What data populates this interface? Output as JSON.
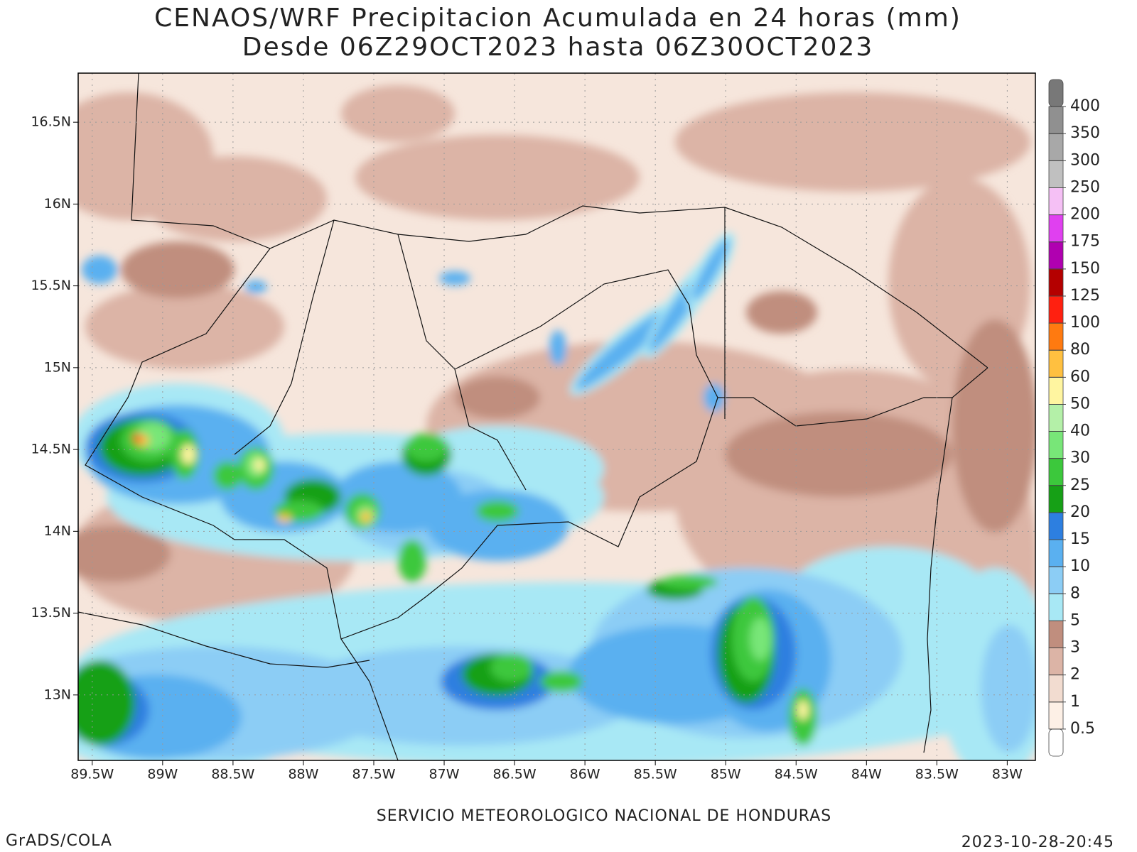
{
  "header": {
    "title": "CENAOS/WRF Precipitacion Acumulada en 24 horas (mm)",
    "subtitle": "Desde 06Z29OCT2023 hasta 06Z30OCT2023"
  },
  "map": {
    "xlim": [
      -89.6,
      -82.8
    ],
    "ylim": [
      12.6,
      16.8
    ],
    "grid": true,
    "xticks": [
      {
        "value": -89.5,
        "label": "89.5W"
      },
      {
        "value": -89,
        "label": "89W"
      },
      {
        "value": -88.5,
        "label": "88.5W"
      },
      {
        "value": -88,
        "label": "88W"
      },
      {
        "value": -87.5,
        "label": "87.5W"
      },
      {
        "value": -87,
        "label": "87W"
      },
      {
        "value": -86.5,
        "label": "86.5W"
      },
      {
        "value": -86,
        "label": "86W"
      },
      {
        "value": -85.5,
        "label": "85.5W"
      },
      {
        "value": -85,
        "label": "85W"
      },
      {
        "value": -84.5,
        "label": "84.5W"
      },
      {
        "value": -84,
        "label": "84W"
      },
      {
        "value": -83.5,
        "label": "83.5W"
      },
      {
        "value": -83,
        "label": "83W"
      }
    ],
    "yticks": [
      {
        "value": 13,
        "label": "13N"
      },
      {
        "value": 13.5,
        "label": "13.5N"
      },
      {
        "value": 14,
        "label": "14N"
      },
      {
        "value": 14.5,
        "label": "14.5N"
      },
      {
        "value": 15,
        "label": "15N"
      },
      {
        "value": 15.5,
        "label": "15.5N"
      },
      {
        "value": 16,
        "label": "16N"
      },
      {
        "value": 16.5,
        "label": "16.5N"
      }
    ]
  },
  "colorbar": {
    "levels": [
      0.5,
      1,
      2,
      3,
      5,
      8,
      10,
      15,
      20,
      25,
      30,
      40,
      50,
      60,
      80,
      100,
      125,
      150,
      175,
      200,
      250,
      300,
      350,
      400
    ],
    "colors": [
      "#ffffff",
      "#fdf0e6",
      "#f2dcd0",
      "#dcb4a6",
      "#c08e7e",
      "#a8e8f5",
      "#8ccdf5",
      "#5ab0f0",
      "#2d7fe0",
      "#16a016",
      "#3cc83c",
      "#78e678",
      "#b4f0a8",
      "#fff5a0",
      "#ffc040",
      "#ff7a10",
      "#ff2010",
      "#b40000",
      "#b000b0",
      "#e040f0",
      "#f5c0f5",
      "#c0c0c0",
      "#a8a8a8",
      "#909090",
      "#787878"
    ]
  },
  "footer": {
    "left": "GrADS/COLA",
    "center": "SERVICIO METEOROLOGICO NACIONAL DE HONDURAS",
    "right": "2023-10-28-20:45"
  }
}
